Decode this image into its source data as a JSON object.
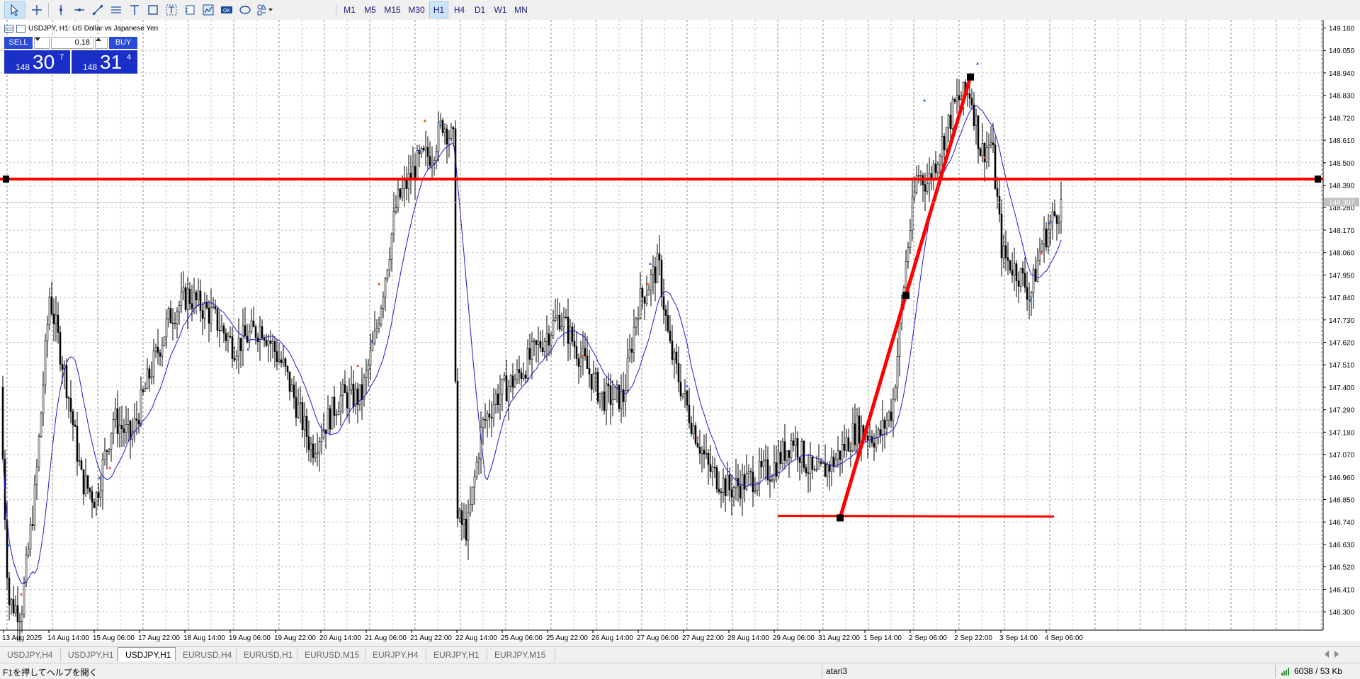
{
  "toolbar": {
    "timeframes": [
      "M1",
      "M5",
      "M15",
      "M30",
      "H1",
      "H4",
      "D1",
      "W1",
      "MN"
    ],
    "active_timeframe": "H1"
  },
  "chart": {
    "title": "USDJPY, H1:  US Dollar vs Japanese Yen",
    "price_labels": [
      "149.160",
      "149.050",
      "148.940",
      "148.830",
      "148.720",
      "148.610",
      "148.500",
      "148.390",
      "148.280",
      "148.170",
      "148.060",
      "147.950",
      "147.840",
      "147.730",
      "147.620",
      "147.510",
      "147.400",
      "147.290",
      "147.180",
      "147.070",
      "146.960",
      "146.850",
      "146.740",
      "146.630",
      "146.520",
      "146.410",
      "146.300"
    ],
    "current_price": "148.307",
    "time_labels": [
      "13 Aug 2025",
      "14 Aug 14:00",
      "15 Aug 06:00",
      "17 Aug 22:00",
      "18 Aug 14:00",
      "19 Aug 06:00",
      "19 Aug 22:00",
      "20 Aug 14:00",
      "21 Aug 06:00",
      "21 Aug 22:00",
      "22 Aug 14:00",
      "25 Aug 06:00",
      "25 Aug 22:00",
      "26 Aug 14:00",
      "27 Aug 06:00",
      "27 Aug 22:00",
      "28 Aug 14:00",
      "29 Aug 06:00",
      "31 Aug 22:00",
      "1 Sep 14:00",
      "2 Sep 06:00",
      "2 Sep 22:00",
      "3 Sep 14:00",
      "4 Sep 06:00"
    ],
    "horizontal_level": 148.42,
    "support_level": 146.77,
    "colors": {
      "bull_bear": "#000000",
      "ma": "#1a1acc",
      "lines": "#ff0000",
      "grid": "#c0c0c0"
    }
  },
  "trade": {
    "sell_label": "SELL",
    "buy_label": "BUY",
    "lot": "0.18",
    "sell_prefix": "148",
    "sell_big": "30",
    "sell_sup": "7",
    "buy_prefix": "148",
    "buy_big": "31",
    "buy_sup": "4"
  },
  "tabs": [
    "USDJPY,H4",
    "USDJPY,H1",
    "USDJPY,H1",
    "EURUSD,H4",
    "EURUSD,H1",
    "EURUSD,M15",
    "EURJPY,H4",
    "EURJPY,H1",
    "EURJPY,M15"
  ],
  "active_tab": 2,
  "status": {
    "help": "F1を押してヘルプを開く",
    "profile": "atari3",
    "traffic": "6038 / 53 Kb"
  }
}
